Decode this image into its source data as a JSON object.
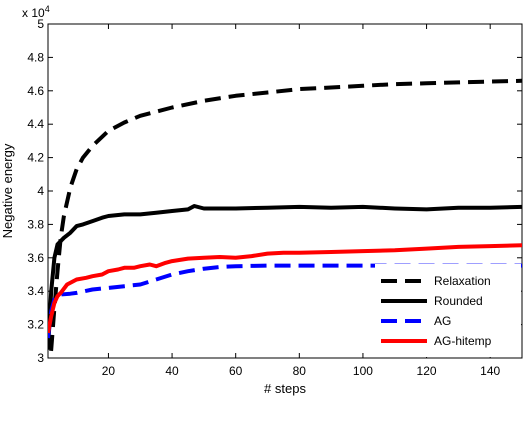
{
  "chart_data": {
    "type": "line",
    "xlabel": "# steps",
    "ylabel": "Negative energy",
    "exponent_label": "x 10",
    "exponent_power": "4",
    "xlim": [
      1,
      150
    ],
    "ylim": [
      3.0,
      5.0
    ],
    "x_ticks": [
      20,
      40,
      60,
      80,
      100,
      120,
      140
    ],
    "y_ticks": [
      3.0,
      3.2,
      3.4,
      3.6,
      3.8,
      4.0,
      4.2,
      4.4,
      4.6,
      4.8,
      5.0
    ],
    "y_tick_labels": [
      "3",
      "3.2",
      "3.4",
      "3.6",
      "3.8",
      "4",
      "4.2",
      "4.4",
      "4.6",
      "4.8",
      "5"
    ],
    "grid": false,
    "legend_position": "bottom-right",
    "series": [
      {
        "name": "Relaxation",
        "color": "#000000",
        "style": "dashed",
        "x": [
          1,
          2,
          3,
          4,
          5,
          6,
          8,
          10,
          12,
          15,
          20,
          25,
          30,
          40,
          50,
          60,
          70,
          80,
          90,
          100,
          110,
          120,
          130,
          140,
          150
        ],
        "y": [
          2.9,
          3.05,
          3.3,
          3.52,
          3.72,
          3.85,
          4.02,
          4.13,
          4.2,
          4.27,
          4.36,
          4.41,
          4.45,
          4.5,
          4.54,
          4.57,
          4.59,
          4.61,
          4.62,
          4.63,
          4.64,
          4.645,
          4.65,
          4.655,
          4.66
        ]
      },
      {
        "name": "Rounded",
        "color": "#000000",
        "style": "solid",
        "x": [
          1,
          2,
          3,
          4,
          5,
          6,
          8,
          10,
          12,
          15,
          18,
          20,
          25,
          30,
          35,
          40,
          45,
          47,
          50,
          60,
          70,
          80,
          90,
          100,
          110,
          120,
          130,
          140,
          150
        ],
        "y": [
          3.05,
          3.4,
          3.6,
          3.68,
          3.7,
          3.72,
          3.75,
          3.79,
          3.8,
          3.82,
          3.84,
          3.85,
          3.86,
          3.86,
          3.87,
          3.88,
          3.89,
          3.91,
          3.895,
          3.895,
          3.9,
          3.905,
          3.9,
          3.905,
          3.895,
          3.89,
          3.9,
          3.9,
          3.905
        ]
      },
      {
        "name": "AG",
        "color": "#0000ff",
        "style": "dashed",
        "x": [
          1,
          2,
          3,
          4,
          5,
          8,
          10,
          15,
          20,
          25,
          30,
          35,
          40,
          45,
          50,
          55,
          60,
          70,
          80,
          90,
          100,
          110,
          120,
          130,
          140,
          150
        ],
        "y": [
          3.12,
          3.28,
          3.35,
          3.37,
          3.38,
          3.385,
          3.39,
          3.41,
          3.42,
          3.43,
          3.44,
          3.47,
          3.5,
          3.52,
          3.535,
          3.545,
          3.55,
          3.553,
          3.553,
          3.553,
          3.553,
          3.553,
          3.553,
          3.553,
          3.553,
          3.553
        ]
      },
      {
        "name": "AG-hitemp",
        "color": "#ff0000",
        "style": "solid",
        "x": [
          1,
          2,
          3,
          4,
          5,
          7,
          10,
          13,
          15,
          18,
          20,
          23,
          25,
          28,
          30,
          33,
          35,
          38,
          40,
          45,
          50,
          55,
          60,
          65,
          70,
          75,
          80,
          90,
          100,
          110,
          120,
          130,
          140,
          150
        ],
        "y": [
          3.15,
          3.25,
          3.33,
          3.37,
          3.39,
          3.44,
          3.47,
          3.48,
          3.49,
          3.5,
          3.52,
          3.53,
          3.54,
          3.54,
          3.55,
          3.56,
          3.55,
          3.57,
          3.58,
          3.595,
          3.6,
          3.605,
          3.6,
          3.61,
          3.625,
          3.63,
          3.63,
          3.635,
          3.64,
          3.645,
          3.655,
          3.665,
          3.67,
          3.675
        ]
      }
    ]
  }
}
